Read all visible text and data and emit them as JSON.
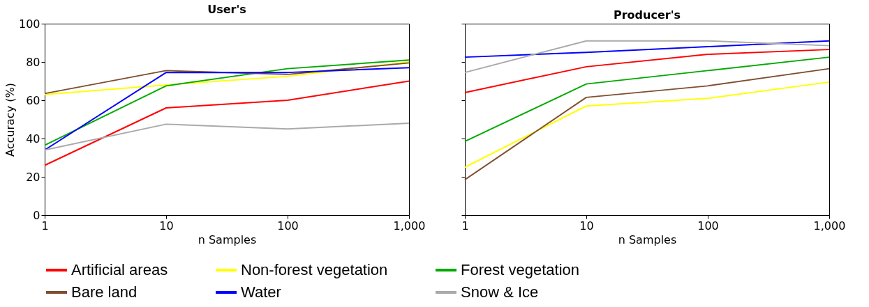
{
  "chart_data": [
    {
      "type": "line",
      "title": "User's",
      "xlabel": "n Samples",
      "ylabel": "Accuracy (%)",
      "log": "x",
      "x": [
        1,
        10,
        100,
        1000
      ],
      "xlim": [
        1,
        1000
      ],
      "xticks": [
        1,
        10,
        100,
        {
          "value": 1000,
          "label": "1,000"
        }
      ],
      "ylim": [
        0,
        100
      ],
      "yticks": [
        0,
        20,
        40,
        60,
        80,
        100
      ],
      "legend": "bottom",
      "series": [
        {
          "name": "Artificial areas",
          "color": "#ff0000",
          "values": [
            26,
            56,
            60,
            70
          ]
        },
        {
          "name": "Non-forest vegetation",
          "color": "#ffff00",
          "values": [
            63,
            68,
            72.5,
            80
          ]
        },
        {
          "name": "Forest vegetation",
          "color": "#00aa00",
          "values": [
            36.5,
            67.5,
            76.5,
            81
          ]
        },
        {
          "name": "Bare land",
          "color": "#7f4f2f",
          "values": [
            63.5,
            75.5,
            73.5,
            79.5
          ]
        },
        {
          "name": "Water",
          "color": "#0000ff",
          "values": [
            34,
            74.5,
            74.5,
            77
          ]
        },
        {
          "name": "Snow & Ice",
          "color": "#aaaaaa",
          "values": [
            34,
            47.5,
            45,
            48
          ]
        }
      ]
    },
    {
      "type": "line",
      "title": "Producer's",
      "xlabel": "n Samples",
      "log": "x",
      "x": [
        1,
        10,
        100,
        1000
      ],
      "tick_labels": "x",
      "xlim": [
        1,
        1000
      ],
      "xticks": [
        1,
        10,
        100,
        {
          "value": 1000,
          "label": "1,000"
        }
      ],
      "ylim": [
        0,
        100
      ],
      "yticks": [
        0,
        20,
        40,
        60,
        80,
        100
      ],
      "legend": "bottom",
      "series": [
        {
          "name": "Artificial areas",
          "color": "#ff0000",
          "values": [
            64,
            77.5,
            84,
            86.5
          ]
        },
        {
          "name": "Non-forest vegetation",
          "color": "#ffff00",
          "values": [
            25,
            57,
            61,
            69.5
          ]
        },
        {
          "name": "Forest vegetation",
          "color": "#00aa00",
          "values": [
            38.5,
            68.5,
            75.5,
            82.5
          ]
        },
        {
          "name": "Bare land",
          "color": "#7f4f2f",
          "values": [
            18.5,
            61.5,
            67.5,
            76.5
          ]
        },
        {
          "name": "Water",
          "color": "#0000ff",
          "values": [
            82.5,
            85,
            88,
            91
          ]
        },
        {
          "name": "Snow & Ice",
          "color": "#aaaaaa",
          "values": [
            74.5,
            91,
            91,
            88.5
          ]
        }
      ]
    }
  ]
}
